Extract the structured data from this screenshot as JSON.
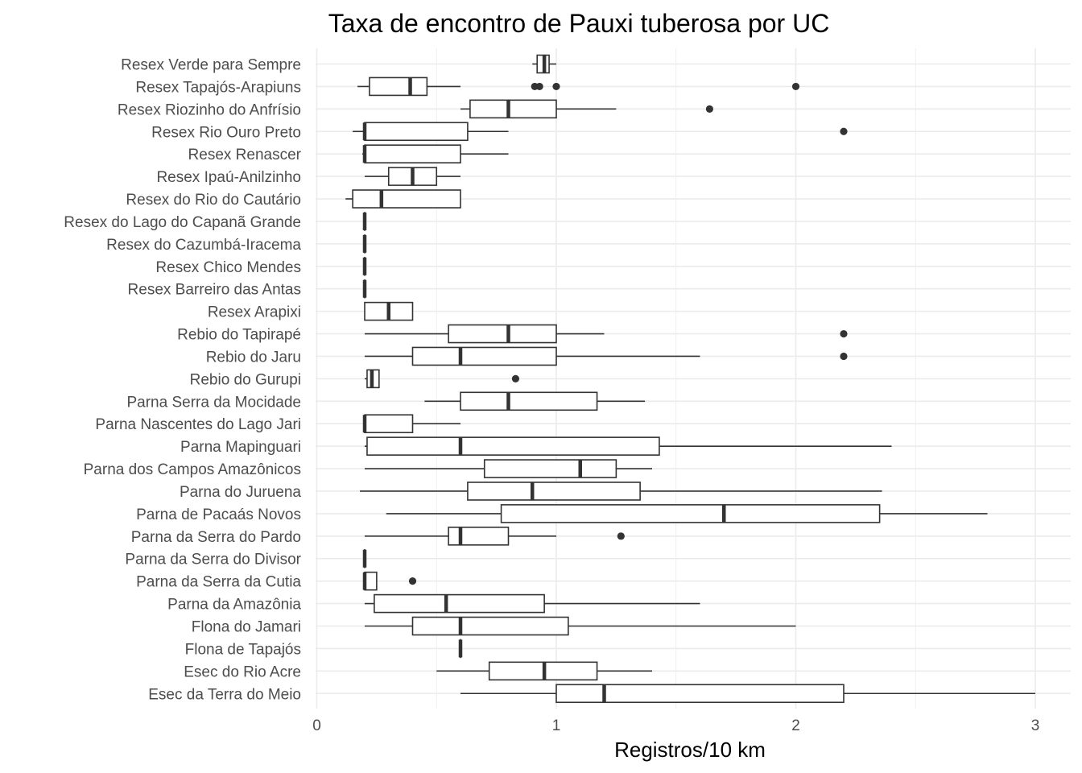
{
  "chart_data": {
    "type": "boxplot",
    "orientation": "horizontal",
    "title": "Taxa de encontro de Pauxi tuberosa por UC",
    "xlabel": "Registros/10 km",
    "ylabel": "",
    "xlim": [
      0,
      3.1
    ],
    "x_ticks": [
      0,
      1,
      2,
      3
    ],
    "x_tick_labels": [
      "0",
      "1",
      "2",
      "3"
    ],
    "grid": true,
    "theme": "minimal",
    "colors": {
      "line": "#333333",
      "fill": "#ffffff",
      "grid": "#ebebeb",
      "text": "#4d4d4d"
    },
    "categories": [
      {
        "name": "Resex Verde para Sempre",
        "min": 0.9,
        "q1": 0.92,
        "median": 0.95,
        "q3": 0.97,
        "max": 1.0,
        "outliers": []
      },
      {
        "name": "Resex Tapajós-Arapiuns",
        "min": 0.17,
        "q1": 0.22,
        "median": 0.39,
        "q3": 0.46,
        "max": 0.6,
        "outliers": [
          0.91,
          0.93,
          1.0,
          2.0
        ]
      },
      {
        "name": "Resex Riozinho do Anfrísio",
        "min": 0.6,
        "q1": 0.64,
        "median": 0.8,
        "q3": 1.0,
        "max": 1.25,
        "outliers": [
          1.64
        ]
      },
      {
        "name": "Resex Rio Ouro Preto",
        "min": 0.15,
        "q1": 0.2,
        "median": 0.2,
        "q3": 0.63,
        "max": 0.8,
        "outliers": [
          2.2
        ]
      },
      {
        "name": "Resex Renascer",
        "min": 0.19,
        "q1": 0.2,
        "median": 0.2,
        "q3": 0.6,
        "max": 0.8,
        "outliers": []
      },
      {
        "name": "Resex Ipaú-Anilzinho",
        "min": 0.2,
        "q1": 0.3,
        "median": 0.4,
        "q3": 0.5,
        "max": 0.6,
        "outliers": []
      },
      {
        "name": "Resex do Rio do Cautário",
        "min": 0.12,
        "q1": 0.15,
        "median": 0.27,
        "q3": 0.6,
        "max": 0.6,
        "outliers": []
      },
      {
        "name": "Resex do Lago do Capanã Grande",
        "min": 0.2,
        "q1": 0.2,
        "median": 0.2,
        "q3": 0.2,
        "max": 0.2,
        "outliers": []
      },
      {
        "name": "Resex do Cazumbá-Iracema",
        "min": 0.2,
        "q1": 0.2,
        "median": 0.2,
        "q3": 0.2,
        "max": 0.2,
        "outliers": []
      },
      {
        "name": "Resex Chico Mendes",
        "min": 0.2,
        "q1": 0.2,
        "median": 0.2,
        "q3": 0.2,
        "max": 0.2,
        "outliers": []
      },
      {
        "name": "Resex Barreiro das Antas",
        "min": 0.2,
        "q1": 0.2,
        "median": 0.2,
        "q3": 0.2,
        "max": 0.2,
        "outliers": []
      },
      {
        "name": "Resex Arapixi",
        "min": 0.2,
        "q1": 0.2,
        "median": 0.3,
        "q3": 0.4,
        "max": 0.4,
        "outliers": []
      },
      {
        "name": "Rebio do Tapirapé",
        "min": 0.2,
        "q1": 0.55,
        "median": 0.8,
        "q3": 1.0,
        "max": 1.2,
        "outliers": [
          2.2
        ]
      },
      {
        "name": "Rebio do Jaru",
        "min": 0.2,
        "q1": 0.4,
        "median": 0.6,
        "q3": 1.0,
        "max": 1.6,
        "outliers": [
          2.2
        ]
      },
      {
        "name": "Rebio do Gurupi",
        "min": 0.2,
        "q1": 0.21,
        "median": 0.23,
        "q3": 0.26,
        "max": 0.26,
        "outliers": [
          0.83
        ]
      },
      {
        "name": "Parna Serra da Mocidade",
        "min": 0.45,
        "q1": 0.6,
        "median": 0.8,
        "q3": 1.17,
        "max": 1.37,
        "outliers": []
      },
      {
        "name": "Parna Nascentes do Lago Jari",
        "min": 0.2,
        "q1": 0.2,
        "median": 0.2,
        "q3": 0.4,
        "max": 0.6,
        "outliers": []
      },
      {
        "name": "Parna Mapinguari",
        "min": 0.2,
        "q1": 0.21,
        "median": 0.6,
        "q3": 1.43,
        "max": 2.4,
        "outliers": []
      },
      {
        "name": "Parna dos Campos Amazônicos",
        "min": 0.2,
        "q1": 0.7,
        "median": 1.1,
        "q3": 1.25,
        "max": 1.4,
        "outliers": []
      },
      {
        "name": "Parna do Juruena",
        "min": 0.18,
        "q1": 0.63,
        "median": 0.9,
        "q3": 1.35,
        "max": 2.36,
        "outliers": []
      },
      {
        "name": "Parna de Pacaás Novos",
        "min": 0.29,
        "q1": 0.77,
        "median": 1.7,
        "q3": 2.35,
        "max": 2.8,
        "outliers": []
      },
      {
        "name": "Parna da Serra do Pardo",
        "min": 0.2,
        "q1": 0.55,
        "median": 0.6,
        "q3": 0.8,
        "max": 1.0,
        "outliers": [
          1.27
        ]
      },
      {
        "name": "Parna da Serra do Divisor",
        "min": 0.2,
        "q1": 0.2,
        "median": 0.2,
        "q3": 0.2,
        "max": 0.2,
        "outliers": []
      },
      {
        "name": "Parna da Serra da Cutia",
        "min": 0.2,
        "q1": 0.2,
        "median": 0.2,
        "q3": 0.25,
        "max": 0.25,
        "outliers": [
          0.4
        ]
      },
      {
        "name": "Parna da Amazônia",
        "min": 0.2,
        "q1": 0.24,
        "median": 0.54,
        "q3": 0.95,
        "max": 1.6,
        "outliers": []
      },
      {
        "name": "Flona do Jamari",
        "min": 0.2,
        "q1": 0.4,
        "median": 0.6,
        "q3": 1.05,
        "max": 2.0,
        "outliers": []
      },
      {
        "name": "Flona de Tapajós",
        "min": 0.6,
        "q1": 0.6,
        "median": 0.6,
        "q3": 0.6,
        "max": 0.6,
        "outliers": []
      },
      {
        "name": "Esec do Rio Acre",
        "min": 0.5,
        "q1": 0.72,
        "median": 0.95,
        "q3": 1.17,
        "max": 1.4,
        "outliers": []
      },
      {
        "name": "Esec da Terra do Meio",
        "min": 0.6,
        "q1": 1.0,
        "median": 1.2,
        "q3": 2.2,
        "max": 3.0,
        "outliers": []
      }
    ]
  }
}
